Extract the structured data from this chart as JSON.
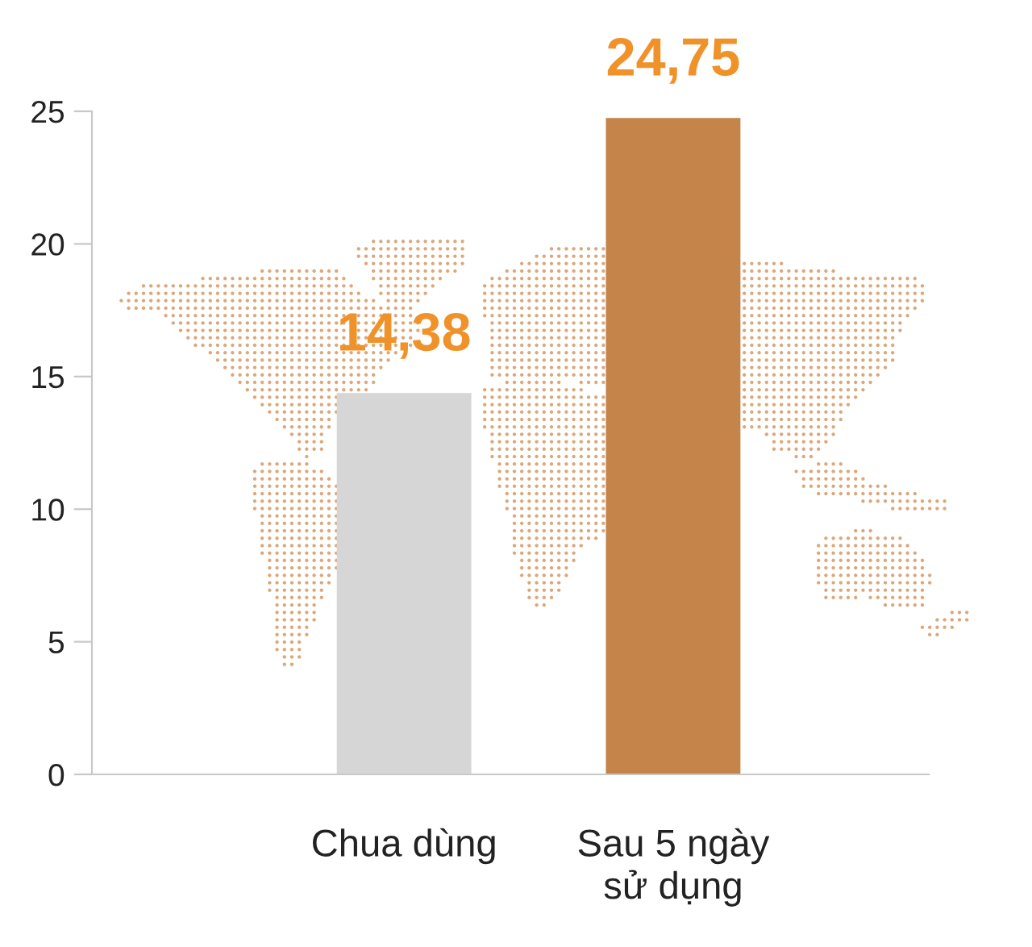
{
  "chart_data": {
    "type": "bar",
    "categories": [
      "Chua dùng",
      "Sau 5 ngày\nsử dụng"
    ],
    "values": [
      14.38,
      24.75
    ],
    "colors": [
      "#d6d6d6",
      "#c4844a"
    ],
    "value_labels": [
      "14,38",
      "24,75"
    ],
    "ylim": [
      0,
      25
    ],
    "yticks": [
      0,
      5,
      10,
      15,
      20,
      25
    ]
  }
}
